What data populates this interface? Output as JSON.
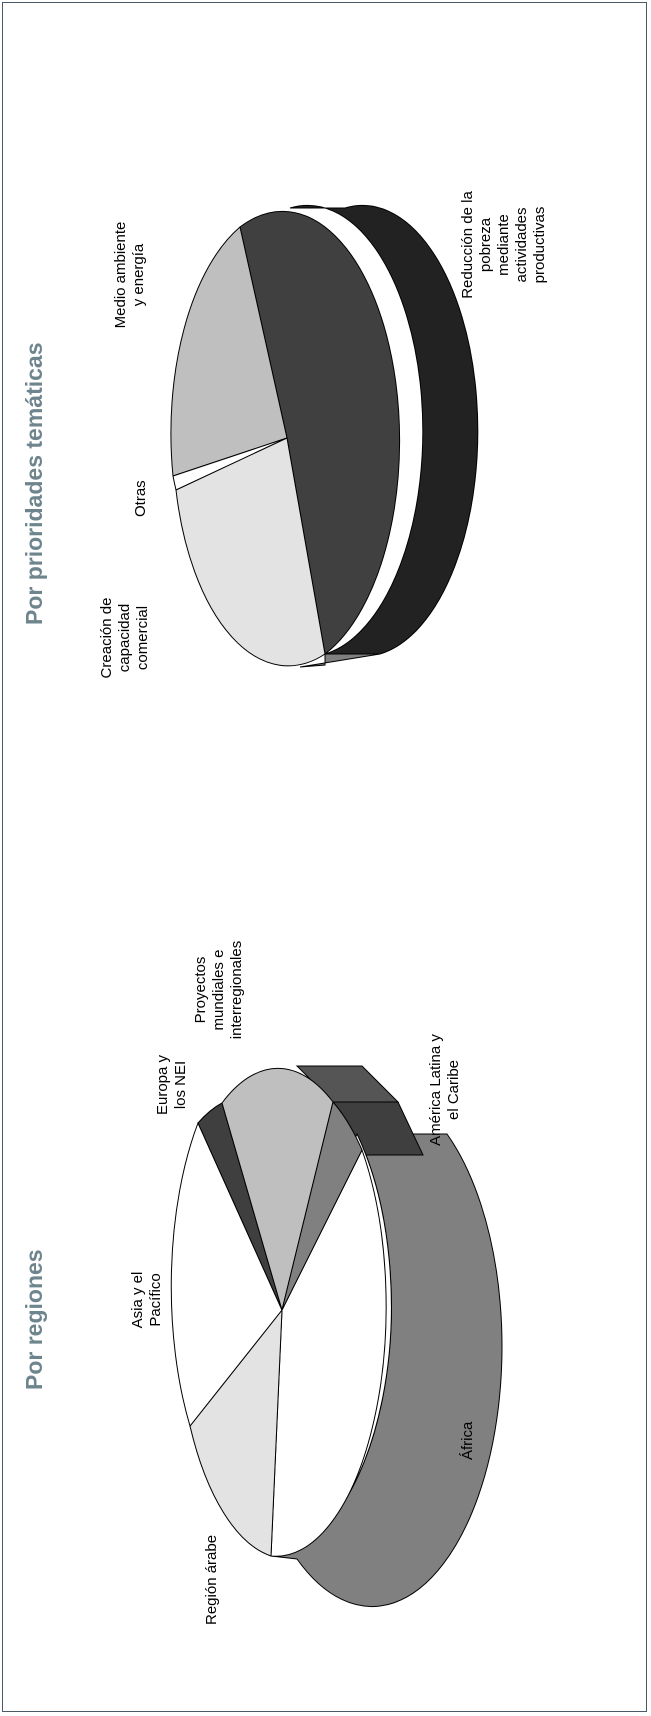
{
  "colors": {
    "title": "#6f858e",
    "frame": "#4a5a66"
  },
  "chart_data": [
    {
      "type": "pie",
      "title": "Por regiones",
      "orientation": "rotated 90° counter-clockwise, 3D",
      "slices": [
        {
          "label": "África",
          "value": 38,
          "color": "#ffffff",
          "side_color": "#808080"
        },
        {
          "label": "Región árabe",
          "value": 11,
          "color": "#e3e3e3"
        },
        {
          "label": "Asia y el Pacífico",
          "value": 17,
          "color": "#ffffff"
        },
        {
          "label": "Europa y los NEI",
          "value": 3,
          "color": "#3f3f3f"
        },
        {
          "label": "Proyectos mundiales e interregionales",
          "value": 14,
          "color": "#bfbfbf"
        },
        {
          "label": "América Latina y el Caribe",
          "value": 4,
          "color": "#808080",
          "side_color": "#3f3f3f"
        },
        {
          "label": "",
          "value": 2,
          "color": "#a0a0a0",
          "side_color": "#555555"
        }
      ],
      "labels": [
        {
          "key": "africa",
          "lines": [
            "África"
          ]
        },
        {
          "key": "arab",
          "lines": [
            "Región árabe"
          ]
        },
        {
          "key": "asia",
          "lines": [
            "Asia y el",
            "Pacífico"
          ]
        },
        {
          "key": "europe",
          "lines": [
            "Europa y",
            "los NEI"
          ]
        },
        {
          "key": "global",
          "lines": [
            "Proyectos",
            "mundiales e",
            "interregionales"
          ]
        },
        {
          "key": "latam",
          "lines": [
            "América Latina y",
            "el Caribe"
          ]
        }
      ]
    },
    {
      "type": "pie",
      "title": "Por prioridades temáticas",
      "orientation": "rotated 90° counter-clockwise, 3D",
      "slices": [
        {
          "label": "Reducción de la pobreza mediante actividades productivas",
          "value": 48,
          "color": "#404040",
          "side_color": "#222222"
        },
        {
          "label": "Medio ambiente y energía",
          "value": 20,
          "color": "#bfbfbf"
        },
        {
          "label": "Otras",
          "value": 2,
          "color": "#ffffff"
        },
        {
          "label": "Creación de capacidad comercial",
          "value": 30,
          "color": "#e3e3e3"
        }
      ],
      "labels": [
        {
          "key": "poverty",
          "lines": [
            "Reducción de la",
            "pobreza",
            "mediante",
            "actividades",
            "productivas"
          ]
        },
        {
          "key": "env",
          "lines": [
            "Medio ambiente",
            "y energía"
          ]
        },
        {
          "key": "other",
          "lines": [
            "Otras"
          ]
        },
        {
          "key": "trade",
          "lines": [
            "Creación de",
            "capacidad",
            "comercial"
          ]
        }
      ]
    }
  ]
}
